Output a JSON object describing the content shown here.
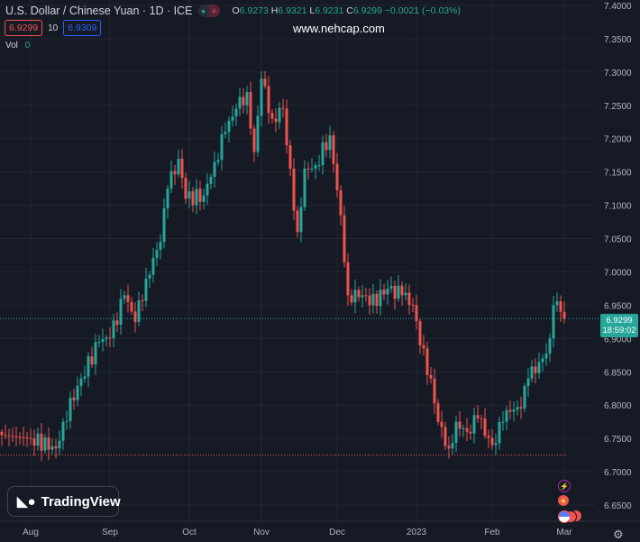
{
  "header": {
    "title": "U.S. Dollar / Chinese Yuan · 1D · ICE",
    "open_label": "O",
    "open": "6.9273",
    "high_label": "H",
    "high": "6.9321",
    "low_label": "L",
    "low": "6.9231",
    "close_label": "C",
    "close": "6.9299",
    "change": "−0.0021 (−0.03%)"
  },
  "bid": "6.9299",
  "spread": "10",
  "ask": "6.9309",
  "volume": {
    "label": "Vol",
    "value": "0"
  },
  "watermark": "www.nehcap.com",
  "logo": "TradingView",
  "price_label": {
    "price": "6.9299",
    "countdown": "18:59:02"
  },
  "chart_data": {
    "type": "candlestick",
    "price_ticks": [
      "7.4000",
      "7.3500",
      "7.3000",
      "7.2500",
      "7.2000",
      "7.1500",
      "7.1000",
      "7.0500",
      "7.0000",
      "6.9500",
      "6.9000",
      "6.8500",
      "6.8000",
      "6.7500",
      "6.7000",
      "6.6500"
    ],
    "ylim": [
      6.6446,
      7.4027
    ],
    "time_ticks": [
      {
        "label": "Aug",
        "day": 8
      },
      {
        "label": "Sep",
        "day": 30
      },
      {
        "label": "Oct",
        "day": 52
      },
      {
        "label": "Nov",
        "day": 72
      },
      {
        "label": "Dec",
        "day": 93
      },
      {
        "label": "2023",
        "day": 115
      },
      {
        "label": "Feb",
        "day": 136
      },
      {
        "label": "Mar",
        "day": 156
      }
    ],
    "close_waypoints": [
      [
        0,
        6.755
      ],
      [
        8,
        6.75
      ],
      [
        15,
        6.735
      ],
      [
        17,
        6.775
      ],
      [
        22,
        6.84
      ],
      [
        27,
        6.895
      ],
      [
        30,
        6.9
      ],
      [
        34,
        6.965
      ],
      [
        37,
        6.925
      ],
      [
        40,
        6.99
      ],
      [
        44,
        7.045
      ],
      [
        46,
        7.125
      ],
      [
        49,
        7.17
      ],
      [
        51,
        7.11
      ],
      [
        56,
        7.115
      ],
      [
        59,
        7.165
      ],
      [
        62,
        7.21
      ],
      [
        65,
        7.245
      ],
      [
        68,
        7.27
      ],
      [
        70,
        7.18
      ],
      [
        72,
        7.29
      ],
      [
        75,
        7.23
      ],
      [
        78,
        7.245
      ],
      [
        79,
        7.19
      ],
      [
        82,
        7.06
      ],
      [
        84,
        7.155
      ],
      [
        87,
        7.16
      ],
      [
        91,
        7.205
      ],
      [
        94,
        7.085
      ],
      [
        96,
        6.965
      ],
      [
        100,
        6.965
      ],
      [
        102,
        6.95
      ],
      [
        107,
        6.975
      ],
      [
        111,
        6.965
      ],
      [
        114,
        6.95
      ],
      [
        116,
        6.89
      ],
      [
        119,
        6.84
      ],
      [
        121,
        6.775
      ],
      [
        124,
        6.735
      ],
      [
        126,
        6.775
      ],
      [
        129,
        6.76
      ],
      [
        132,
        6.78
      ],
      [
        136,
        6.74
      ],
      [
        139,
        6.775
      ],
      [
        141,
        6.79
      ],
      [
        144,
        6.795
      ],
      [
        146,
        6.84
      ],
      [
        150,
        6.87
      ],
      [
        152,
        6.9
      ],
      [
        153,
        6.95
      ],
      [
        155,
        6.94
      ],
      [
        156,
        6.9299
      ]
    ],
    "last_price": 6.9299,
    "low_line": 6.725
  },
  "colors": {
    "up": "#26a69a",
    "down": "#ef5350",
    "bg": "#161a25",
    "grid": "#232632"
  }
}
